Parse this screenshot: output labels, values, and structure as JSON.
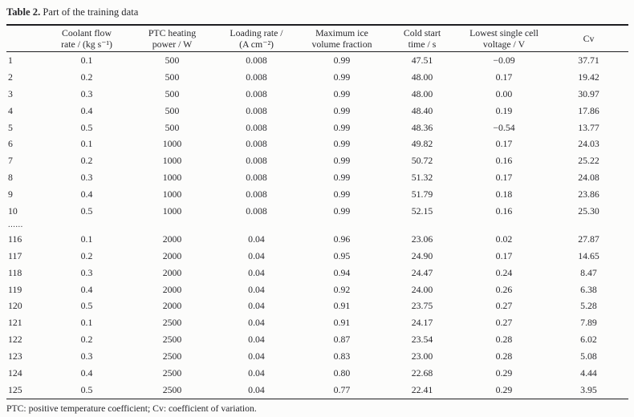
{
  "caption": {
    "label": "Table 2.",
    "text": " Part of the training data"
  },
  "table": {
    "headers": [
      "",
      "Coolant flow\nrate / (kg s⁻¹)",
      "PTC heating\npower / W",
      "Loading rate /\n(A cm⁻²)",
      "Maximum ice\nvolume fraction",
      "Cold start\ntime / s",
      "Lowest single cell\nvoltage / V",
      "Cv"
    ],
    "rows": [
      [
        "1",
        "0.1",
        "500",
        "0.008",
        "0.99",
        "47.51",
        "−0.09",
        "37.71"
      ],
      [
        "2",
        "0.2",
        "500",
        "0.008",
        "0.99",
        "48.00",
        "0.17",
        "19.42"
      ],
      [
        "3",
        "0.3",
        "500",
        "0.008",
        "0.99",
        "48.00",
        "0.00",
        "30.97"
      ],
      [
        "4",
        "0.4",
        "500",
        "0.008",
        "0.99",
        "48.40",
        "0.19",
        "17.86"
      ],
      [
        "5",
        "0.5",
        "500",
        "0.008",
        "0.99",
        "48.36",
        "−0.54",
        "13.77"
      ],
      [
        "6",
        "0.1",
        "1000",
        "0.008",
        "0.99",
        "49.82",
        "0.17",
        "24.03"
      ],
      [
        "7",
        "0.2",
        "1000",
        "0.008",
        "0.99",
        "50.72",
        "0.16",
        "25.22"
      ],
      [
        "8",
        "0.3",
        "1000",
        "0.008",
        "0.99",
        "51.32",
        "0.17",
        "24.08"
      ],
      [
        "9",
        "0.4",
        "1000",
        "0.008",
        "0.99",
        "51.79",
        "0.18",
        "23.86"
      ],
      [
        "10",
        "0.5",
        "1000",
        "0.008",
        "0.99",
        "52.15",
        "0.16",
        "25.30"
      ],
      [
        "......"
      ],
      [
        "116",
        "0.1",
        "2000",
        "0.04",
        "0.96",
        "23.06",
        "0.02",
        "27.87"
      ],
      [
        "117",
        "0.2",
        "2000",
        "0.04",
        "0.95",
        "24.90",
        "0.17",
        "14.65"
      ],
      [
        "118",
        "0.3",
        "2000",
        "0.04",
        "0.94",
        "24.47",
        "0.24",
        "8.47"
      ],
      [
        "119",
        "0.4",
        "2000",
        "0.04",
        "0.92",
        "24.00",
        "0.26",
        "6.38"
      ],
      [
        "120",
        "0.5",
        "2000",
        "0.04",
        "0.91",
        "23.75",
        "0.27",
        "5.28"
      ],
      [
        "121",
        "0.1",
        "2500",
        "0.04",
        "0.91",
        "24.17",
        "0.27",
        "7.89"
      ],
      [
        "122",
        "0.2",
        "2500",
        "0.04",
        "0.87",
        "23.54",
        "0.28",
        "6.02"
      ],
      [
        "123",
        "0.3",
        "2500",
        "0.04",
        "0.83",
        "23.00",
        "0.28",
        "5.08"
      ],
      [
        "124",
        "0.4",
        "2500",
        "0.04",
        "0.80",
        "22.68",
        "0.29",
        "4.44"
      ],
      [
        "125",
        "0.5",
        "2500",
        "0.04",
        "0.77",
        "22.41",
        "0.29",
        "3.95"
      ]
    ]
  },
  "footnote": "PTC: positive temperature coefficient; Cv: coefficient of variation."
}
